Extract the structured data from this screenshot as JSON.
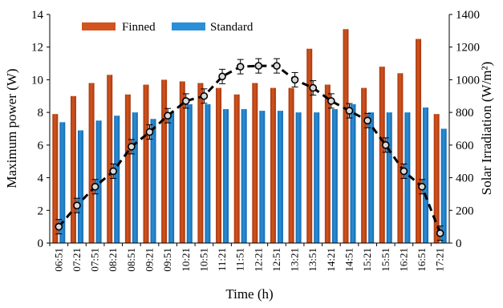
{
  "chart_data": {
    "type": "bar",
    "xlabel": "Time (h)",
    "ylabel": "Maximum power (W)",
    "y2label": "Solar Irradiation (W/m²)",
    "categories": [
      "06:51",
      "07:21",
      "07:51",
      "08:21",
      "08:51",
      "09:21",
      "09:51",
      "10:21",
      "10:51",
      "11:21",
      "11:51",
      "12:21",
      "12:51",
      "13:21",
      "13:51",
      "14:21",
      "14:51",
      "15:21",
      "15:51",
      "16:21",
      "16:51",
      "17:21"
    ],
    "ylim": [
      0,
      14
    ],
    "yticks": [
      "0",
      "2",
      "4",
      "6",
      "8",
      "10",
      "12",
      "14"
    ],
    "y2lim": [
      0,
      1400
    ],
    "y2ticks": [
      "0",
      "200",
      "400",
      "600",
      "800",
      "1000",
      "1200",
      "1400"
    ],
    "series": [
      {
        "name": "Finned",
        "kind": "bar",
        "color": "#d2541e",
        "values": [
          7.9,
          9.0,
          9.8,
          10.3,
          9.1,
          9.7,
          10.0,
          9.9,
          9.8,
          9.5,
          9.1,
          9.8,
          9.5,
          9.5,
          11.9,
          9.7,
          13.1,
          9.5,
          10.8,
          10.4,
          12.5,
          7.9
        ]
      },
      {
        "name": "Standard",
        "kind": "bar",
        "color": "#2a8fd6",
        "values": [
          7.4,
          6.9,
          7.5,
          7.8,
          8.0,
          7.6,
          8.0,
          8.5,
          8.5,
          8.2,
          8.2,
          8.1,
          8.1,
          8.0,
          8.0,
          8.2,
          8.5,
          8.0,
          8.0,
          8.0,
          8.3,
          7.0
        ]
      },
      {
        "kind": "line",
        "axis": "right",
        "style": "dashed-with-circle-markers-and-error-bars",
        "color": "#000000",
        "values": [
          100,
          230,
          345,
          440,
          590,
          680,
          780,
          870,
          900,
          1020,
          1080,
          1085,
          1085,
          1000,
          950,
          870,
          810,
          750,
          600,
          440,
          345,
          60
        ]
      }
    ],
    "legend": "top-left",
    "grid": false
  }
}
